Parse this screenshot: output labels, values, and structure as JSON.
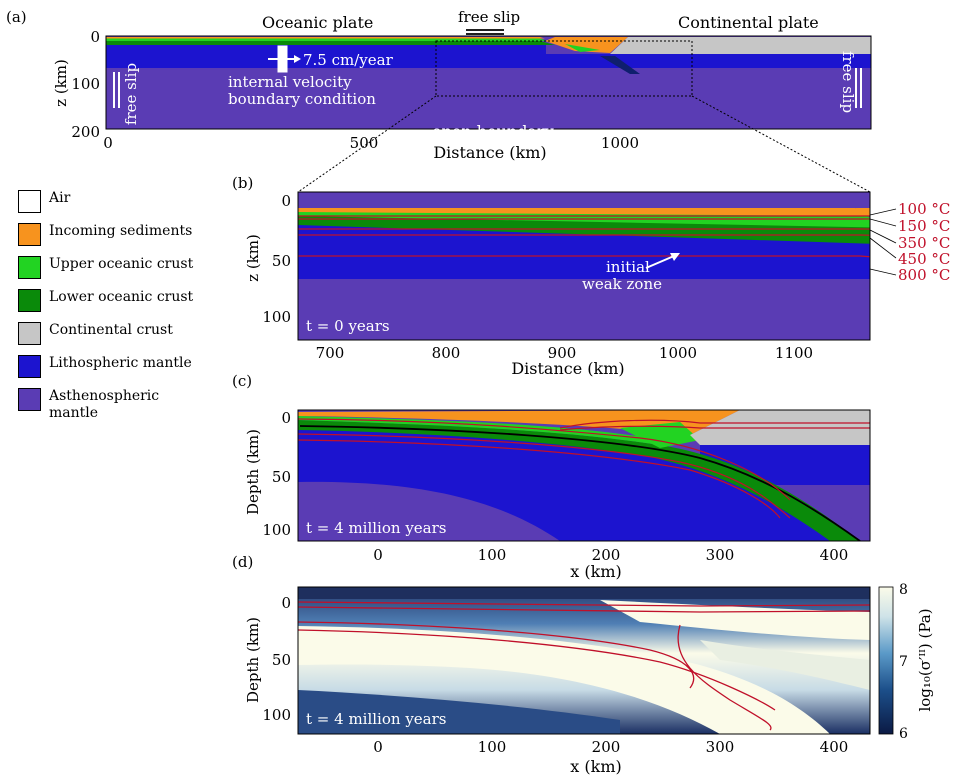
{
  "colors": {
    "air": "#ffffff",
    "sediments": "#f7931e",
    "upper_crust": "#22d322",
    "lower_crust": "#0a8a0a",
    "continental": "#c6c6c6",
    "lithosphere": "#1c14cf",
    "asthenosphere": "#5a3cb4",
    "isotherm": "#c0102a",
    "weak_zone": "#0f1f6e"
  },
  "panel_a": {
    "tag": "(a)",
    "oceanic_plate": "Oceanic plate",
    "free_slip_top": "free slip",
    "continental_plate": "Continental plate",
    "velocity": "7.5 cm/year",
    "internal_bc_line1": "internal velocity",
    "internal_bc_line2": "boundary condition",
    "free_slip_left": "free slip",
    "free_slip_right": "free slip",
    "open_boundary": "open boundary",
    "ylabel": "z (km)",
    "xlabel": "Distance (km)",
    "yticks": [
      "0",
      "100",
      "200"
    ],
    "xticks": [
      "0",
      "500",
      "1000"
    ]
  },
  "panel_b": {
    "tag": "(b)",
    "ylabel": "z (km)",
    "xlabel": "Distance (km)",
    "yticks": [
      "0",
      "50",
      "100"
    ],
    "xticks": [
      "700",
      "800",
      "900",
      "1000",
      "1100"
    ],
    "time": "t = 0 years",
    "weak_zone_line1": "initial",
    "weak_zone_line2": "weak zone",
    "isotherms": [
      "100 °C",
      "150 °C",
      "350 °C",
      "450 °C",
      "800 °C"
    ]
  },
  "panel_c": {
    "tag": "(c)",
    "ylabel": "Depth (km)",
    "xlabel": "x (km)",
    "yticks": [
      "0",
      "50",
      "100"
    ],
    "xticks": [
      "0",
      "100",
      "200",
      "300",
      "400"
    ],
    "time": "t = 4 million years"
  },
  "panel_d": {
    "tag": "(d)",
    "ylabel": "Depth (km)",
    "xlabel": "x (km)",
    "yticks": [
      "0",
      "50",
      "100"
    ],
    "xticks": [
      "0",
      "100",
      "200",
      "300",
      "400"
    ],
    "time": "t = 4 million years",
    "colorbar_label": "log₁₀(σ′ᴵᴵ) (Pa)",
    "colorbar_ticks": [
      "8",
      "7",
      "6"
    ]
  },
  "legend": [
    {
      "label": "Air",
      "color": "#ffffff"
    },
    {
      "label": "Incoming sediments",
      "color": "#f7931e"
    },
    {
      "label": "Upper oceanic crust",
      "color": "#22d322"
    },
    {
      "label": "Lower oceanic crust",
      "color": "#0a8a0a"
    },
    {
      "label": "Continental crust",
      "color": "#c6c6c6"
    },
    {
      "label": "Lithospheric mantle",
      "color": "#1c14cf"
    },
    {
      "label": "Asthenospheric mantle",
      "color": "#5a3cb4"
    }
  ]
}
